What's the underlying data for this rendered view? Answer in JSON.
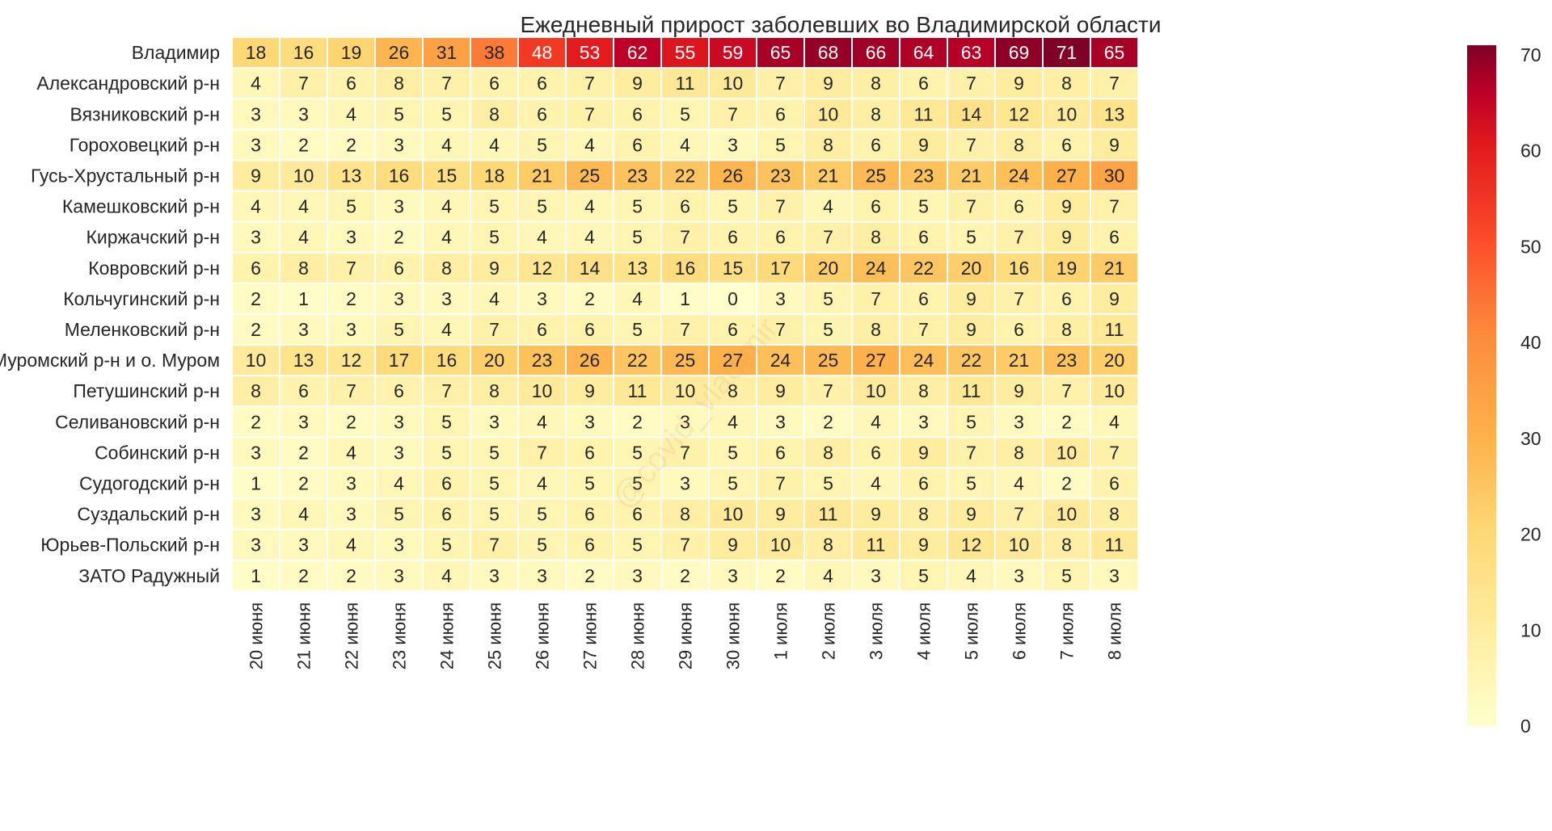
{
  "chart_data": {
    "type": "heatmap",
    "title": "Ежедневный прирост заболевших во Владимирской области",
    "xlabel": "",
    "ylabel": "",
    "columns": [
      "20 июня",
      "21 июня",
      "22 июня",
      "23 июня",
      "24 июня",
      "25 июня",
      "26 июня",
      "27 июня",
      "28 июня",
      "29 июня",
      "30 июня",
      "1 июля",
      "2 июля",
      "3 июля",
      "4 июля",
      "5 июля",
      "6 июля",
      "7 июля",
      "8 июля"
    ],
    "rows": [
      "Владимир",
      "Александровский р-н",
      "Вязниковский р-н",
      "Гороховецкий р-н",
      "Гусь-Хрустальный р-н",
      "Камешковский р-н",
      "Киржачский р-н",
      "Ковровский р-н",
      "Кольчугинский р-н",
      "Меленковский р-н",
      "Муромский р-н и о. Муром",
      "Петушинский р-н",
      "Селивановский р-н",
      "Собинский р-н",
      "Судогодский р-н",
      "Суздальский р-н",
      "Юрьев-Польский р-н",
      "ЗАТО Радужный"
    ],
    "values": [
      [
        18,
        16,
        19,
        26,
        31,
        38,
        48,
        53,
        62,
        55,
        59,
        65,
        68,
        66,
        64,
        63,
        69,
        71,
        65
      ],
      [
        4,
        7,
        6,
        8,
        7,
        6,
        6,
        7,
        9,
        11,
        10,
        7,
        9,
        8,
        6,
        7,
        9,
        8,
        7
      ],
      [
        3,
        3,
        4,
        5,
        5,
        8,
        6,
        7,
        6,
        5,
        7,
        6,
        10,
        8,
        11,
        14,
        12,
        10,
        13
      ],
      [
        3,
        2,
        2,
        3,
        4,
        4,
        5,
        4,
        6,
        4,
        3,
        5,
        8,
        6,
        9,
        7,
        8,
        6,
        9
      ],
      [
        9,
        10,
        13,
        16,
        15,
        18,
        21,
        25,
        23,
        22,
        26,
        23,
        21,
        25,
        23,
        21,
        24,
        27,
        30
      ],
      [
        4,
        4,
        5,
        3,
        4,
        5,
        5,
        4,
        5,
        6,
        5,
        7,
        4,
        6,
        5,
        7,
        6,
        9,
        7
      ],
      [
        3,
        4,
        3,
        2,
        4,
        5,
        4,
        4,
        5,
        7,
        6,
        6,
        7,
        8,
        6,
        5,
        7,
        9,
        6
      ],
      [
        6,
        8,
        7,
        6,
        8,
        9,
        12,
        14,
        13,
        16,
        15,
        17,
        20,
        24,
        22,
        20,
        16,
        19,
        21
      ],
      [
        2,
        1,
        2,
        3,
        3,
        4,
        3,
        2,
        4,
        1,
        0,
        3,
        5,
        7,
        6,
        9,
        7,
        6,
        9
      ],
      [
        2,
        3,
        3,
        5,
        4,
        7,
        6,
        6,
        5,
        7,
        6,
        7,
        5,
        8,
        7,
        9,
        6,
        8,
        11
      ],
      [
        10,
        13,
        12,
        17,
        16,
        20,
        23,
        26,
        22,
        25,
        27,
        24,
        25,
        27,
        24,
        22,
        21,
        23,
        20
      ],
      [
        8,
        6,
        7,
        6,
        7,
        8,
        10,
        9,
        11,
        10,
        8,
        9,
        7,
        10,
        8,
        11,
        9,
        7,
        10
      ],
      [
        2,
        3,
        2,
        3,
        5,
        3,
        4,
        3,
        2,
        3,
        4,
        3,
        2,
        4,
        3,
        5,
        3,
        2,
        4
      ],
      [
        3,
        2,
        4,
        3,
        5,
        5,
        7,
        6,
        5,
        7,
        5,
        6,
        8,
        6,
        9,
        7,
        8,
        10,
        7
      ],
      [
        1,
        2,
        3,
        4,
        6,
        5,
        4,
        5,
        5,
        3,
        5,
        7,
        5,
        4,
        6,
        5,
        4,
        2,
        6
      ],
      [
        3,
        4,
        3,
        5,
        6,
        5,
        5,
        6,
        6,
        8,
        10,
        9,
        11,
        9,
        8,
        9,
        7,
        10,
        8
      ],
      [
        3,
        3,
        4,
        3,
        5,
        7,
        5,
        6,
        5,
        7,
        9,
        10,
        8,
        11,
        9,
        12,
        10,
        8,
        11
      ],
      [
        1,
        2,
        2,
        3,
        4,
        3,
        3,
        2,
        3,
        2,
        3,
        2,
        4,
        3,
        5,
        4,
        3,
        5,
        3
      ]
    ],
    "colorscale": "YlOrRd",
    "vmin": 0,
    "vmax": 71,
    "colorbar_ticks": [
      0,
      10,
      20,
      30,
      40,
      50,
      60,
      70
    ],
    "grid": false,
    "cell_annotations": true,
    "watermark": "@covid_vladimir"
  }
}
